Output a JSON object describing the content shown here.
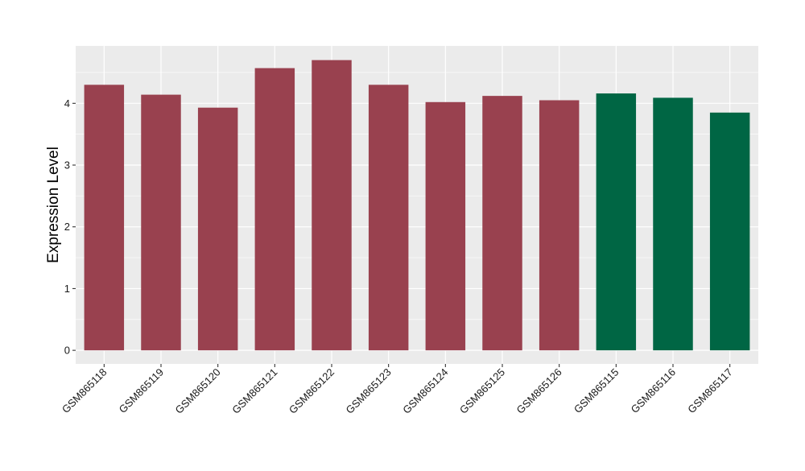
{
  "chart_data": {
    "type": "bar",
    "title": "",
    "xlabel": "",
    "ylabel": "Expression Level",
    "categories": [
      "GSM865118",
      "GSM865119",
      "GSM865120",
      "GSM865121",
      "GSM865122",
      "GSM865123",
      "GSM865124",
      "GSM865125",
      "GSM865126",
      "GSM865115",
      "GSM865116",
      "GSM865117"
    ],
    "values": [
      4.3,
      4.14,
      3.93,
      4.57,
      4.7,
      4.3,
      4.02,
      4.12,
      4.05,
      4.16,
      4.09,
      3.85
    ],
    "groups": [
      0,
      0,
      0,
      0,
      0,
      0,
      0,
      0,
      0,
      1,
      1,
      1
    ],
    "group_colors": [
      "#99414f",
      "#006644"
    ],
    "yticks": [
      0,
      1,
      2,
      3,
      4
    ],
    "ylim": [
      -0.22,
      4.93
    ],
    "grid": true,
    "legend": "none",
    "panel_background": "#ebebeb",
    "grid_color": "#ffffff"
  }
}
